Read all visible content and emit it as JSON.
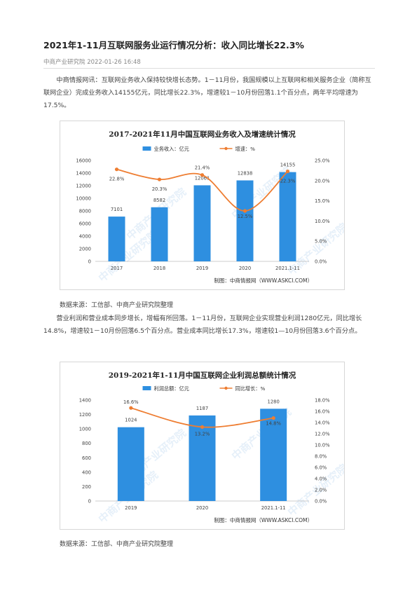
{
  "article": {
    "title": "2021年1-11月互联网服务业运行情况分析：收入同比增长22.3%",
    "meta": "中商产业研究院 2022-01-26 16:48",
    "para1": "中商情报网讯：互联网业务收入保持较快增长态势。1－11月份，我国规模以上互联网和相关服务企业（简称互联网企业）完成业务收入14155亿元，同比增长22.3%，增速较1－10月份回落1.1个百分点，两年平均增速为17.5%。",
    "source1": "数据来源：工信部、中商产业研究院整理",
    "para2": "营业利润和营业成本同步增长，增幅有所回落。1－11月份，互联网企业实现营业利润1280亿元，同比增长14.8%，增速较1－10月份回落6.5个百分点。营业成本同比增长17.3%，增速较1—10月份回落3.6个百分点。",
    "source2": "数据来源：工信部、中商产业研究院整理"
  },
  "chart_data": [
    {
      "type": "bar",
      "title": "2017-2021年11月中国互联网业务收入及增速统计情况",
      "categories": [
        "2017",
        "2018",
        "2019",
        "2020",
        "2021.1-11"
      ],
      "series": [
        {
          "name": "业务收入：亿元",
          "values": [
            7101,
            8582,
            12061,
            12838,
            14155
          ],
          "axis": "left",
          "kind": "bar"
        },
        {
          "name": "增速：%",
          "values": [
            22.8,
            20.3,
            21.4,
            12.5,
            22.3
          ],
          "axis": "right",
          "kind": "line"
        }
      ],
      "y_left": {
        "min": 0,
        "max": 16000,
        "step": 2000,
        "ticks": [
          "0",
          "2000",
          "4000",
          "6000",
          "8000",
          "10000",
          "12000",
          "14000",
          "16000"
        ]
      },
      "y_right": {
        "min": 0,
        "max": 25,
        "step": 5,
        "ticks": [
          "0.0%",
          "5.0%",
          "10.0%",
          "15.0%",
          "20.0%",
          "25.0%"
        ]
      },
      "bar_labels": [
        "7101",
        "8582",
        "12061",
        "12838",
        "14155"
      ],
      "line_labels": [
        "22.8%",
        "20.3%",
        "21.4%",
        "12.5%",
        "22.3%"
      ],
      "legend_position": "top",
      "grid": false,
      "credit": "制图：中商情报网（WWW.ASKCI.COM）",
      "watermark": "中商产业研究院"
    },
    {
      "type": "bar",
      "title": "2019-2021年1-11月中国互联网企业利润总额统计情况",
      "categories": [
        "2019",
        "2020",
        "2021.1-11"
      ],
      "series": [
        {
          "name": "利润总额：亿元",
          "values": [
            1024,
            1187,
            1280
          ],
          "axis": "left",
          "kind": "bar"
        },
        {
          "name": "同比增长：%",
          "values": [
            16.6,
            13.2,
            14.8
          ],
          "axis": "right",
          "kind": "line"
        }
      ],
      "y_left": {
        "min": 0,
        "max": 1400,
        "step": 200,
        "ticks": [
          "0",
          "200",
          "400",
          "600",
          "800",
          "1000",
          "1200",
          "1400"
        ]
      },
      "y_right": {
        "min": 0,
        "max": 18,
        "step": 2,
        "ticks": [
          "0.0%",
          "2.0%",
          "4.0%",
          "6.0%",
          "8.0%",
          "10.0%",
          "12.0%",
          "14.0%",
          "16.0%",
          "18.0%"
        ]
      },
      "bar_labels": [
        "1024",
        "1187",
        "1280"
      ],
      "line_labels": [
        "16.6%",
        "13.2%",
        "14.8%"
      ],
      "legend_position": "top",
      "grid": false,
      "credit": "制图：中商情报网（WWW.ASKCI.COM）",
      "watermark": "中商产业研究院"
    }
  ],
  "colors": {
    "bar": "#2e8fe0",
    "line": "#ee7d31"
  }
}
